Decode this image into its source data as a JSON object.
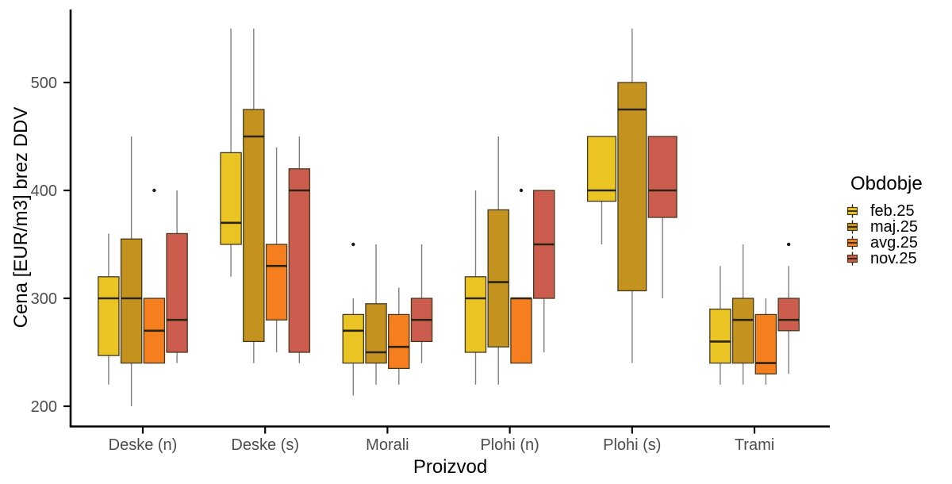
{
  "figure": {
    "y_axis_title": "Cena [EUR/m3] brez DDV",
    "x_axis_title": "Proizvod"
  },
  "legend": {
    "title": "Obdobje",
    "entries": [
      {
        "label": "feb.25",
        "color": "#EAC423"
      },
      {
        "label": "maj.25",
        "color": "#C4921F"
      },
      {
        "label": "avg.25",
        "color": "#F57E1E"
      },
      {
        "label": "nov.25",
        "color": "#CC5C4D"
      }
    ]
  },
  "style_colors": {
    "box_border": "#43391f",
    "median_line": "#2a2310",
    "whisker": "#7f7f7f",
    "axis_line": "#000000",
    "tick_label": "#4d4d4d",
    "outlier": "#1a1a1a"
  },
  "chart_data": {
    "type": "boxplot",
    "title": "",
    "xlabel": "Proizvod",
    "ylabel": "Cena [EUR/m3] brez DDV",
    "ylim": [
      182,
      567
    ],
    "yticks": [
      200,
      300,
      400,
      500
    ],
    "grid": false,
    "legend_position": "right",
    "categories": [
      "Deske (n)",
      "Deske (s)",
      "Morali",
      "Plohi (n)",
      "Plohi (s)",
      "Trami"
    ],
    "series": [
      {
        "name": "feb.25",
        "color": "#EAC423",
        "boxes": [
          {
            "min": 220,
            "q1": 247,
            "median": 300,
            "q3": 320,
            "max": 360,
            "outliers": []
          },
          {
            "min": 320,
            "q1": 350,
            "median": 370,
            "q3": 435,
            "max": 550,
            "outliers": []
          },
          {
            "min": 210,
            "q1": 240,
            "median": 270,
            "q3": 285,
            "max": 300,
            "outliers": [
              350
            ]
          },
          {
            "min": 220,
            "q1": 250,
            "median": 300,
            "q3": 320,
            "max": 400,
            "outliers": []
          },
          {
            "min": 350,
            "q1": 390,
            "median": 400,
            "q3": 450,
            "max": 450,
            "outliers": []
          },
          {
            "min": 220,
            "q1": 240,
            "median": 260,
            "q3": 290,
            "max": 330,
            "outliers": []
          }
        ]
      },
      {
        "name": "maj.25",
        "color": "#C4921F",
        "boxes": [
          {
            "min": 200,
            "q1": 240,
            "median": 300,
            "q3": 355,
            "max": 450,
            "outliers": []
          },
          {
            "min": 240,
            "q1": 260,
            "median": 450,
            "q3": 475,
            "max": 550,
            "outliers": []
          },
          {
            "min": 220,
            "q1": 240,
            "median": 250,
            "q3": 295,
            "max": 350,
            "outliers": []
          },
          {
            "min": 220,
            "q1": 255,
            "median": 315,
            "q3": 382,
            "max": 450,
            "outliers": []
          },
          {
            "min": 240,
            "q1": 307,
            "median": 475,
            "q3": 500,
            "max": 550,
            "outliers": []
          },
          {
            "min": 220,
            "q1": 240,
            "median": 280,
            "q3": 300,
            "max": 350,
            "outliers": []
          }
        ]
      },
      {
        "name": "avg.25",
        "color": "#F57E1E",
        "boxes": [
          {
            "min": 240,
            "q1": 240,
            "median": 270,
            "q3": 300,
            "max": 300,
            "outliers": [
              400
            ]
          },
          {
            "min": 250,
            "q1": 280,
            "median": 330,
            "q3": 350,
            "max": 440,
            "outliers": []
          },
          {
            "min": 220,
            "q1": 235,
            "median": 255,
            "q3": 285,
            "max": 310,
            "outliers": []
          },
          {
            "min": 240,
            "q1": 240,
            "median": 300,
            "q3": 300,
            "max": 300,
            "outliers": [
              400
            ]
          },
          null,
          {
            "min": 220,
            "q1": 230,
            "median": 240,
            "q3": 285,
            "max": 300,
            "outliers": []
          }
        ]
      },
      {
        "name": "nov.25",
        "color": "#CC5C4D",
        "boxes": [
          {
            "min": 240,
            "q1": 250,
            "median": 280,
            "q3": 360,
            "max": 400,
            "outliers": []
          },
          {
            "min": 240,
            "q1": 250,
            "median": 400,
            "q3": 420,
            "max": 450,
            "outliers": []
          },
          {
            "min": 240,
            "q1": 260,
            "median": 280,
            "q3": 300,
            "max": 350,
            "outliers": []
          },
          {
            "min": 250,
            "q1": 300,
            "median": 350,
            "q3": 400,
            "max": 400,
            "outliers": []
          },
          {
            "min": 300,
            "q1": 375,
            "median": 400,
            "q3": 450,
            "max": 450,
            "outliers": []
          },
          {
            "min": 230,
            "q1": 270,
            "median": 280,
            "q3": 300,
            "max": 330,
            "outliers": [
              350
            ]
          }
        ]
      }
    ]
  }
}
